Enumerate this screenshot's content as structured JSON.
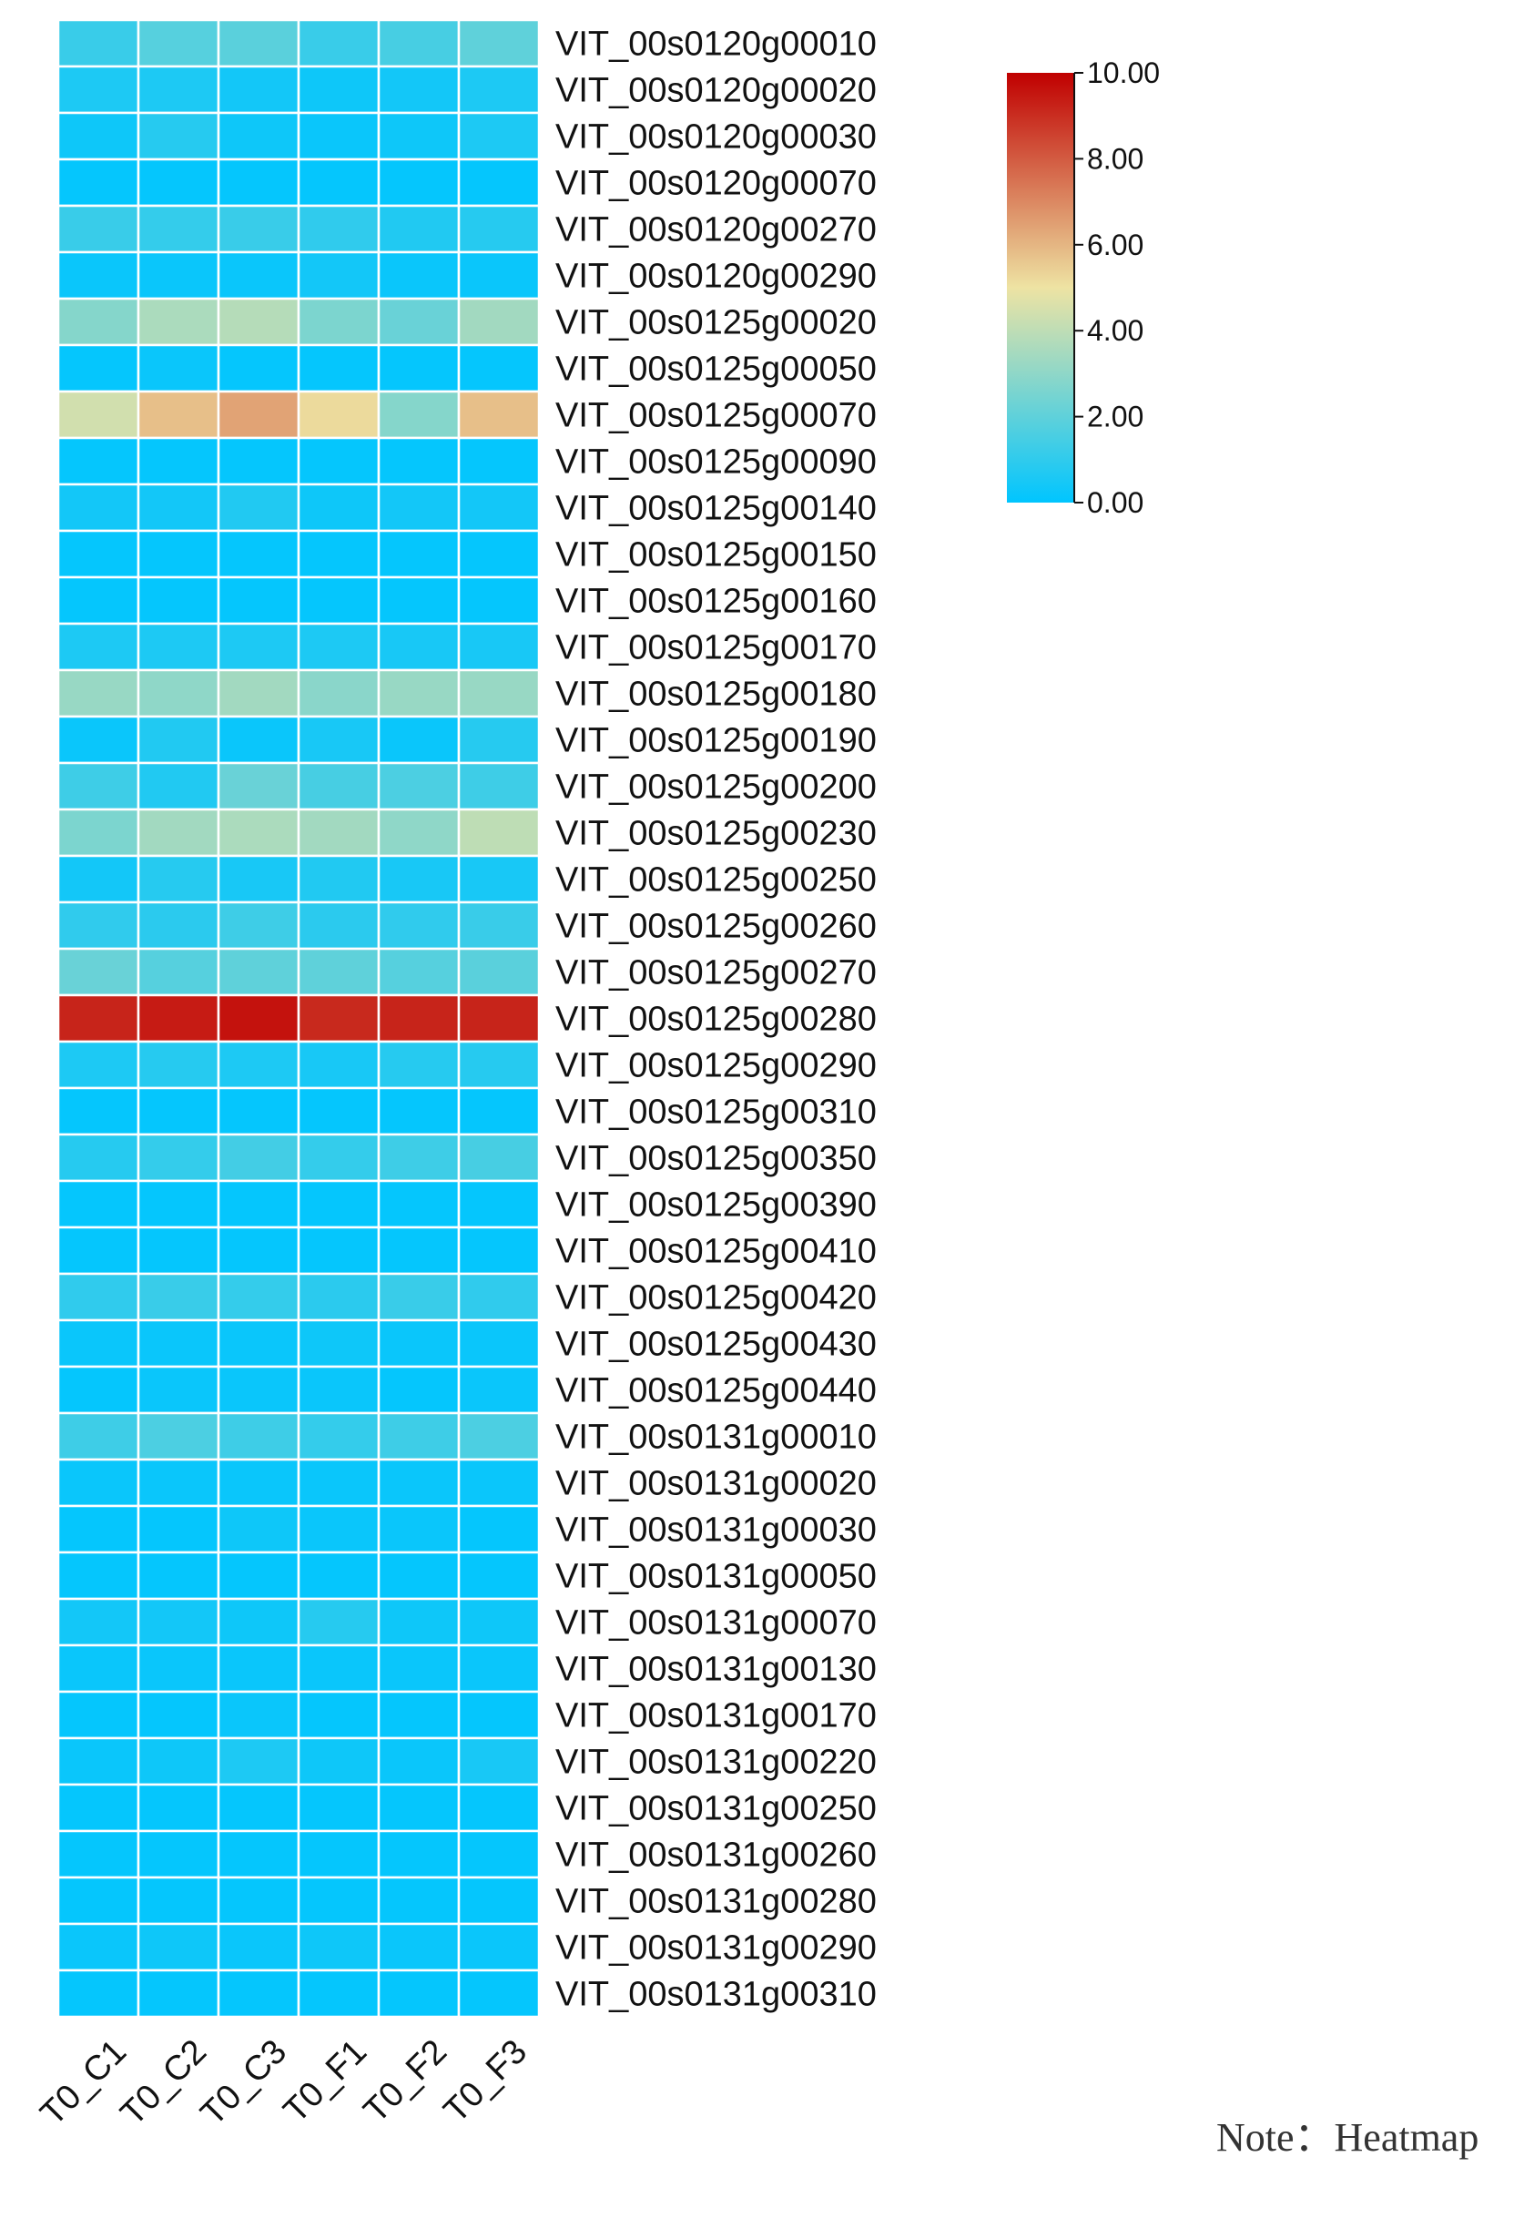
{
  "chart_data": {
    "type": "heatmap",
    "columns": [
      "T0_C1",
      "T0_C2",
      "T0_C3",
      "T0_F1",
      "T0_F2",
      "T0_F3"
    ],
    "rows": [
      "VIT_00s0120g00010",
      "VIT_00s0120g00020",
      "VIT_00s0120g00030",
      "VIT_00s0120g00070",
      "VIT_00s0120g00270",
      "VIT_00s0120g00290",
      "VIT_00s0125g00020",
      "VIT_00s0125g00050",
      "VIT_00s0125g00070",
      "VIT_00s0125g00090",
      "VIT_00s0125g00140",
      "VIT_00s0125g00150",
      "VIT_00s0125g00160",
      "VIT_00s0125g00170",
      "VIT_00s0125g00180",
      "VIT_00s0125g00190",
      "VIT_00s0125g00200",
      "VIT_00s0125g00230",
      "VIT_00s0125g00250",
      "VIT_00s0125g00260",
      "VIT_00s0125g00270",
      "VIT_00s0125g00280",
      "VIT_00s0125g00290",
      "VIT_00s0125g00310",
      "VIT_00s0125g00350",
      "VIT_00s0125g00390",
      "VIT_00s0125g00410",
      "VIT_00s0125g00420",
      "VIT_00s0125g00430",
      "VIT_00s0125g00440",
      "VIT_00s0131g00010",
      "VIT_00s0131g00020",
      "VIT_00s0131g00030",
      "VIT_00s0131g00050",
      "VIT_00s0131g00070",
      "VIT_00s0131g00130",
      "VIT_00s0131g00170",
      "VIT_00s0131g00220",
      "VIT_00s0131g00250",
      "VIT_00s0131g00260",
      "VIT_00s0131g00280",
      "VIT_00s0131g00290",
      "VIT_00s0131g00310"
    ],
    "values": [
      [
        1.2,
        1.8,
        1.9,
        1.2,
        1.5,
        2.0
      ],
      [
        0.6,
        0.6,
        0.4,
        0.3,
        0.4,
        0.6
      ],
      [
        0.3,
        0.8,
        0.3,
        0.2,
        0.3,
        0.6
      ],
      [
        0.1,
        0.1,
        0.1,
        0.1,
        0.1,
        0.1
      ],
      [
        1.2,
        1.1,
        1.2,
        1.0,
        0.7,
        0.8
      ],
      [
        0.2,
        0.2,
        0.2,
        0.4,
        0.2,
        0.2
      ],
      [
        2.8,
        3.6,
        3.8,
        2.6,
        2.2,
        3.4
      ],
      [
        0.1,
        0.2,
        0.1,
        0.1,
        0.1,
        0.1
      ],
      [
        4.4,
        5.8,
        6.4,
        5.2,
        2.8,
        5.8
      ],
      [
        0.1,
        0.1,
        0.1,
        0.1,
        0.1,
        0.1
      ],
      [
        0.4,
        0.4,
        0.7,
        0.3,
        0.4,
        0.4
      ],
      [
        0.1,
        0.1,
        0.1,
        0.1,
        0.1,
        0.1
      ],
      [
        0.1,
        0.1,
        0.1,
        0.1,
        0.1,
        0.1
      ],
      [
        0.6,
        0.6,
        0.6,
        0.6,
        0.5,
        0.5
      ],
      [
        3.2,
        3.0,
        3.4,
        2.9,
        3.2,
        3.2
      ],
      [
        0.2,
        0.7,
        0.2,
        0.5,
        0.2,
        0.8
      ],
      [
        1.3,
        0.7,
        2.2,
        1.5,
        1.6,
        1.3
      ],
      [
        2.6,
        3.4,
        3.6,
        3.4,
        3.0,
        4.0
      ],
      [
        0.4,
        0.8,
        0.5,
        0.7,
        0.5,
        0.5
      ],
      [
        1.0,
        0.9,
        1.3,
        0.9,
        1.0,
        1.2
      ],
      [
        2.2,
        1.8,
        2.0,
        2.0,
        1.8,
        1.9
      ],
      [
        9.2,
        9.4,
        9.6,
        9.1,
        9.2,
        9.2
      ],
      [
        0.6,
        0.8,
        0.6,
        0.5,
        0.8,
        0.8
      ],
      [
        0.1,
        0.1,
        0.1,
        0.1,
        0.1,
        0.1
      ],
      [
        0.8,
        1.1,
        1.4,
        1.1,
        1.3,
        1.5
      ],
      [
        0.1,
        0.1,
        0.1,
        0.1,
        0.1,
        0.1
      ],
      [
        0.1,
        0.1,
        0.1,
        0.1,
        0.1,
        0.1
      ],
      [
        1.0,
        1.2,
        1.1,
        0.9,
        1.2,
        1.0
      ],
      [
        0.2,
        0.2,
        0.2,
        0.3,
        0.2,
        0.2
      ],
      [
        0.1,
        0.2,
        0.2,
        0.2,
        0.1,
        0.2
      ],
      [
        1.3,
        1.6,
        1.3,
        1.1,
        1.3,
        1.6
      ],
      [
        0.2,
        0.2,
        0.2,
        0.2,
        0.2,
        0.2
      ],
      [
        0.1,
        0.1,
        0.3,
        0.2,
        0.2,
        0.1
      ],
      [
        0.1,
        0.1,
        0.1,
        0.1,
        0.1,
        0.1
      ],
      [
        0.4,
        0.4,
        0.3,
        0.8,
        0.3,
        0.3
      ],
      [
        0.2,
        0.2,
        0.2,
        0.2,
        0.2,
        0.2
      ],
      [
        0.1,
        0.1,
        0.2,
        0.1,
        0.1,
        0.1
      ],
      [
        0.2,
        0.3,
        0.6,
        0.3,
        0.2,
        0.5
      ],
      [
        0.1,
        0.1,
        0.1,
        0.1,
        0.1,
        0.1
      ],
      [
        0.1,
        0.1,
        0.1,
        0.1,
        0.1,
        0.1
      ],
      [
        0.1,
        0.1,
        0.1,
        0.1,
        0.1,
        0.1
      ],
      [
        0.2,
        0.3,
        0.2,
        0.3,
        0.2,
        0.2
      ],
      [
        0.1,
        0.1,
        0.1,
        0.1,
        0.1,
        0.1
      ]
    ],
    "value_range": [
      0,
      10
    ],
    "colormap": [
      "#00c5ff",
      "#eee3a3",
      "#c00000"
    ],
    "colorbar": {
      "ticks": [
        "10.00",
        "8.00",
        "6.00",
        "4.00",
        "2.00",
        "0.00"
      ],
      "tick_values": [
        10,
        8,
        6,
        4,
        2,
        0
      ],
      "placement": "top-right"
    },
    "cell_border_color": "#ffffff",
    "row_labels_side": "right",
    "column_labels_rotation": "-45"
  },
  "note": "Note：Heatmap"
}
